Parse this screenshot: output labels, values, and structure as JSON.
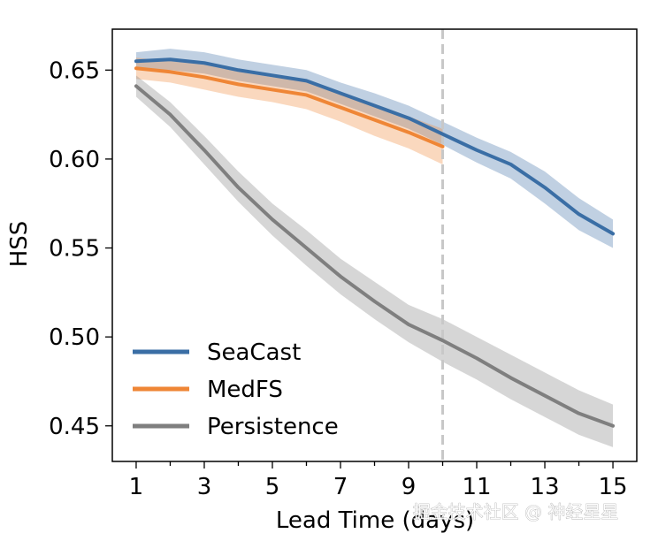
{
  "chart_data": {
    "type": "line",
    "xlabel": "Lead Time (days)",
    "ylabel": "HSS",
    "xlim": [
      0.3,
      15.7
    ],
    "ylim": [
      0.43,
      0.673
    ],
    "xticks": [
      1,
      3,
      5,
      7,
      9,
      11,
      13,
      15
    ],
    "xtick_labels": [
      "1",
      "3",
      "5",
      "7",
      "9",
      "11",
      "13",
      "15"
    ],
    "yticks": [
      0.45,
      0.5,
      0.55,
      0.6,
      0.65
    ],
    "ytick_labels": [
      "0.45",
      "0.50",
      "0.55",
      "0.60",
      "0.65"
    ],
    "vline": {
      "x": 10,
      "style": "dashed"
    },
    "grid": false,
    "legend_position": "bottom-left",
    "series": [
      {
        "name": "SeaCast",
        "color": "#3a6ea5",
        "x": [
          1,
          2,
          3,
          4,
          5,
          6,
          7,
          8,
          9,
          10,
          11,
          12,
          13,
          14,
          15
        ],
        "y": [
          0.655,
          0.656,
          0.654,
          0.65,
          0.647,
          0.644,
          0.637,
          0.63,
          0.623,
          0.614,
          0.605,
          0.597,
          0.584,
          0.569,
          0.558
        ],
        "lower": [
          0.65,
          0.65,
          0.648,
          0.644,
          0.641,
          0.638,
          0.631,
          0.624,
          0.617,
          0.608,
          0.598,
          0.589,
          0.575,
          0.56,
          0.55
        ],
        "upper": [
          0.66,
          0.662,
          0.66,
          0.656,
          0.653,
          0.65,
          0.643,
          0.637,
          0.63,
          0.621,
          0.612,
          0.604,
          0.593,
          0.578,
          0.566
        ]
      },
      {
        "name": "MedFS",
        "color": "#ef8636",
        "x": [
          1,
          2,
          3,
          4,
          5,
          6,
          7,
          8,
          9,
          10
        ],
        "y": [
          0.651,
          0.649,
          0.646,
          0.642,
          0.639,
          0.636,
          0.629,
          0.622,
          0.615,
          0.607
        ],
        "lower": [
          0.645,
          0.643,
          0.639,
          0.635,
          0.632,
          0.628,
          0.621,
          0.613,
          0.606,
          0.597
        ],
        "upper": [
          0.657,
          0.655,
          0.653,
          0.649,
          0.646,
          0.644,
          0.637,
          0.631,
          0.624,
          0.617
        ]
      },
      {
        "name": "Persistence",
        "color": "#7f7f7f",
        "x": [
          1,
          2,
          3,
          4,
          5,
          6,
          7,
          8,
          9,
          10,
          11,
          12,
          13,
          14,
          15
        ],
        "y": [
          0.641,
          0.625,
          0.605,
          0.584,
          0.566,
          0.55,
          0.534,
          0.52,
          0.507,
          0.498,
          0.488,
          0.477,
          0.467,
          0.457,
          0.45
        ],
        "lower": [
          0.635,
          0.618,
          0.597,
          0.576,
          0.557,
          0.54,
          0.524,
          0.51,
          0.497,
          0.486,
          0.476,
          0.465,
          0.455,
          0.445,
          0.438
        ],
        "upper": [
          0.647,
          0.632,
          0.613,
          0.593,
          0.575,
          0.56,
          0.544,
          0.531,
          0.518,
          0.51,
          0.5,
          0.49,
          0.48,
          0.47,
          0.462
        ]
      }
    ]
  },
  "watermark": "掘金技术社区 @ 神经星星"
}
